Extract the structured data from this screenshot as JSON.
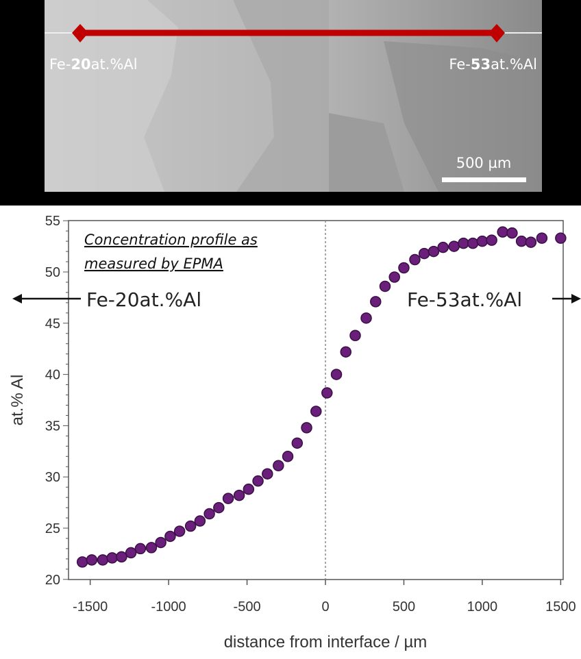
{
  "micrograph": {
    "left_label_prefix": "Fe-",
    "left_label_bold": "20",
    "left_label_suffix": "at.%Al",
    "right_label_prefix": "Fe-",
    "right_label_bold": "53",
    "right_label_suffix": "at.%Al",
    "scale_bar_label": "500 µm",
    "line_color": "#c00000"
  },
  "chart_data": {
    "type": "scatter",
    "xlabel": "distance from interface / µm",
    "ylabel": "at.% Al",
    "xlim": [
      -1640,
      1520
    ],
    "ylim": [
      20,
      55
    ],
    "xticks": [
      -1500,
      -1000,
      -500,
      0,
      500,
      1000,
      1500
    ],
    "yticks": [
      20,
      25,
      30,
      35,
      40,
      45,
      50,
      55
    ],
    "grid": false,
    "interface_line_x": 0,
    "marker_color": "#6a1f7a",
    "annotation": [
      "Concentration profile as",
      "measured by EPMA"
    ],
    "left_composition": "Fe-20at.%Al",
    "right_composition": "Fe-53at.%Al",
    "points": {
      "x": [
        -1550,
        -1490,
        -1420,
        -1360,
        -1300,
        -1240,
        -1180,
        -1110,
        -1050,
        -990,
        -930,
        -860,
        -800,
        -740,
        -680,
        -620,
        -550,
        -490,
        -430,
        -370,
        -300,
        -240,
        -180,
        -120,
        -60,
        10,
        70,
        130,
        190,
        260,
        320,
        380,
        440,
        500,
        570,
        630,
        690,
        750,
        820,
        880,
        940,
        1000,
        1060,
        1130,
        1190,
        1250,
        1310,
        1380,
        1500
      ],
      "y": [
        21.7,
        21.9,
        21.9,
        22.1,
        22.2,
        22.6,
        23.0,
        23.1,
        23.6,
        24.2,
        24.7,
        25.2,
        25.7,
        26.4,
        27.0,
        27.9,
        28.2,
        28.8,
        29.6,
        30.3,
        31.1,
        32.0,
        33.3,
        34.8,
        36.4,
        38.2,
        40.0,
        42.2,
        43.8,
        45.5,
        47.1,
        48.6,
        49.5,
        50.4,
        51.2,
        51.8,
        52.0,
        52.4,
        52.5,
        52.8,
        52.8,
        53.0,
        53.1,
        53.9,
        53.8,
        53.0,
        52.9,
        53.3,
        53.3
      ]
    }
  }
}
